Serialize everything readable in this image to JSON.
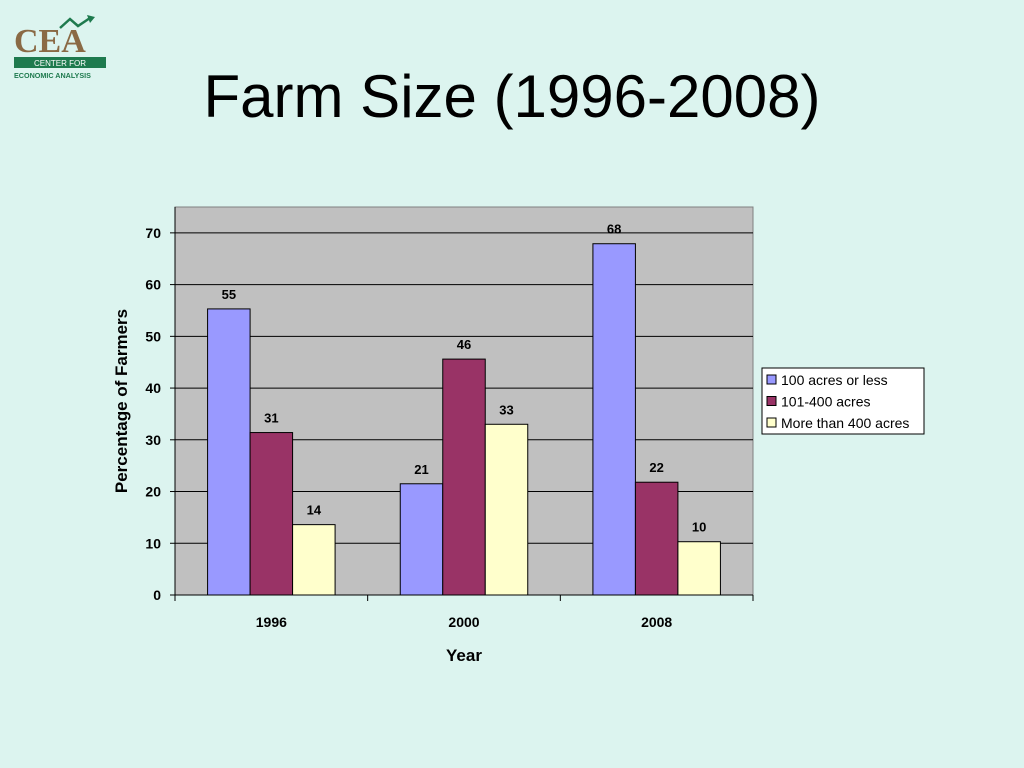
{
  "logo": {
    "name": "CEA",
    "line1": "CENTER FOR",
    "line2": "ECONOMIC ANALYSIS",
    "colors": {
      "text": "#8a6a45",
      "bar": "#1e7a4e",
      "arrow": "#1e7a4e"
    }
  },
  "slide": {
    "title": "Farm Size (1996-2008)"
  },
  "chart_data": {
    "type": "bar",
    "title": "",
    "xlabel": "Year",
    "ylabel": "Percentage of Farmers",
    "categories": [
      "1996",
      "2000",
      "2008"
    ],
    "ylim": [
      0,
      75
    ],
    "yticks": [
      0,
      10,
      20,
      30,
      40,
      50,
      60,
      70
    ],
    "grid": true,
    "legend_position": "right",
    "plot_background": "#c0c0c0",
    "series": [
      {
        "name": "100 acres or less",
        "color": "#9999ff",
        "values": [
          55,
          21,
          68
        ]
      },
      {
        "name": "101-400 acres",
        "color": "#993366",
        "values": [
          31,
          46,
          22
        ]
      },
      {
        "name": "More than 400 acres",
        "color": "#ffffcc",
        "values": [
          14,
          33,
          10
        ]
      }
    ],
    "bar_heights": [
      [
        55.3,
        21.5,
        67.9
      ],
      [
        31.4,
        45.6,
        21.8
      ],
      [
        13.6,
        33.0,
        10.3
      ]
    ]
  }
}
